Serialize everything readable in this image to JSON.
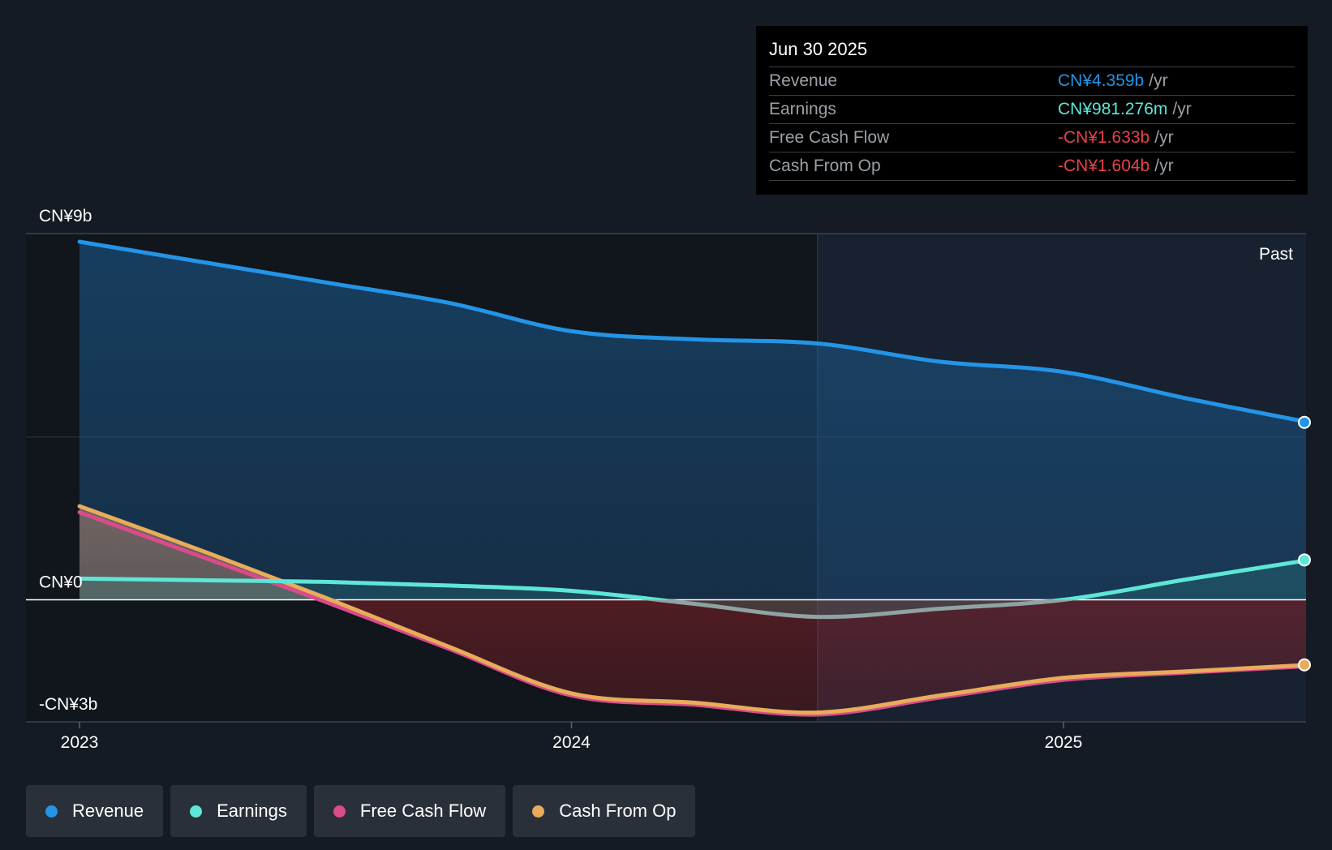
{
  "tooltip": {
    "date": "Jun 30 2025",
    "rows": [
      {
        "label": "Revenue",
        "value": "CN¥4.359b",
        "unit": "/yr",
        "color": "#2394e6"
      },
      {
        "label": "Earnings",
        "value": "CN¥981.276m",
        "unit": "/yr",
        "color": "#5ee6d6"
      },
      {
        "label": "Free Cash Flow",
        "value": "-CN¥1.633b",
        "unit": "/yr",
        "color": "#e8414b"
      },
      {
        "label": "Cash From Op",
        "value": "-CN¥1.604b",
        "unit": "/yr",
        "color": "#e8414b"
      }
    ]
  },
  "legend": [
    {
      "label": "Revenue",
      "color": "#2394e6"
    },
    {
      "label": "Earnings",
      "color": "#5ee6d6"
    },
    {
      "label": "Free Cash Flow",
      "color": "#d94b8a"
    },
    {
      "label": "Cash From Op",
      "color": "#e8ac5a"
    }
  ],
  "chart_data": {
    "type": "area",
    "title": "",
    "past_label": "Past",
    "y_tick_labels": [
      "CN¥9b",
      "CN¥0",
      "-CN¥3b"
    ],
    "y_ticks": [
      9,
      0,
      -3
    ],
    "ylim": [
      -3,
      9
    ],
    "xlim": [
      2022.98,
      2025.6
    ],
    "x_ticks": [
      2023,
      2024,
      2025
    ],
    "x_tick_labels": [
      "2023",
      "2024",
      "2025"
    ],
    "past_divider_x": 2024.5,
    "series": [
      {
        "name": "Revenue",
        "color": "#2394e6",
        "x": [
          2023.0,
          2023.25,
          2023.5,
          2023.75,
          2024.0,
          2024.25,
          2024.5,
          2024.75,
          2025.0,
          2025.25,
          2025.5
        ],
        "values": [
          8.8,
          8.3,
          7.8,
          7.3,
          6.6,
          6.4,
          6.3,
          5.85,
          5.6,
          4.95,
          4.36
        ]
      },
      {
        "name": "Earnings",
        "color": "#5ee6d6",
        "x": [
          2023.0,
          2023.25,
          2023.5,
          2023.75,
          2024.0,
          2024.25,
          2024.5,
          2024.75,
          2025.0,
          2025.25,
          2025.5
        ],
        "values": [
          0.52,
          0.48,
          0.44,
          0.35,
          0.22,
          -0.1,
          -0.42,
          -0.22,
          0.0,
          0.5,
          0.98
        ]
      },
      {
        "name": "Free Cash Flow",
        "color": "#d94b8a",
        "x": [
          2023.0,
          2023.25,
          2023.5,
          2023.75,
          2024.0,
          2024.25,
          2024.5,
          2024.75,
          2025.0,
          2025.25,
          2025.5
        ],
        "values": [
          2.15,
          1.05,
          -0.05,
          -1.2,
          -2.35,
          -2.58,
          -2.82,
          -2.4,
          -1.97,
          -1.79,
          -1.63
        ]
      },
      {
        "name": "Cash From Op",
        "color": "#e8ac5a",
        "x": [
          2023.0,
          2023.25,
          2023.5,
          2023.75,
          2024.0,
          2024.25,
          2024.5,
          2024.75,
          2025.0,
          2025.25,
          2025.5
        ],
        "values": [
          2.3,
          1.2,
          0.05,
          -1.15,
          -2.3,
          -2.53,
          -2.77,
          -2.35,
          -1.92,
          -1.76,
          -1.6
        ]
      }
    ]
  }
}
